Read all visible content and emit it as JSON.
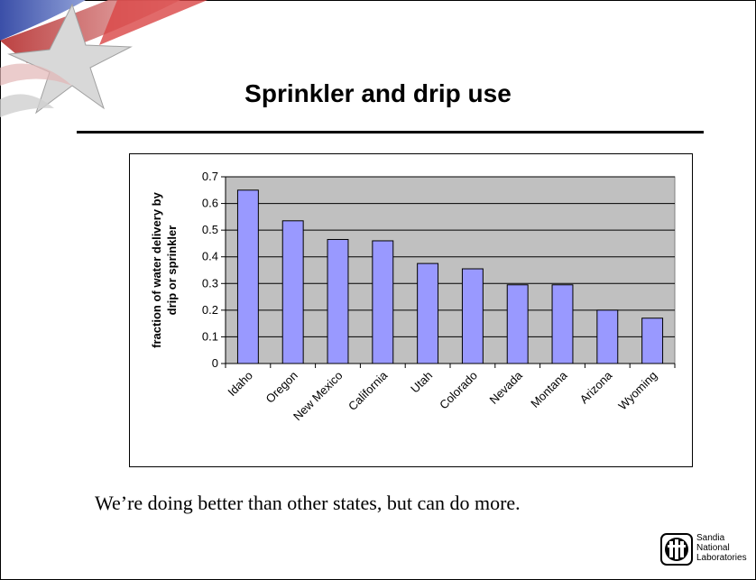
{
  "slide": {
    "title": "Sprinkler and drip use",
    "caption": "We’re doing better than other states, but can do more."
  },
  "logo": {
    "line1": "Sandia",
    "line2": "National",
    "line3": "Laboratories"
  },
  "chart_data": {
    "type": "bar",
    "categories": [
      "Idaho",
      "Oregon",
      "New Mexico",
      "California",
      "Utah",
      "Colorado",
      "Nevada",
      "Montana",
      "Arizona",
      "Wyoming"
    ],
    "series": [
      {
        "values": [
          0.65,
          0.535,
          0.465,
          0.46,
          0.375,
          0.355,
          0.295,
          0.295,
          0.2,
          0.17
        ]
      }
    ],
    "title": "",
    "xlabel": "",
    "ylabel": "fraction of water delivery by drip or sprinkler",
    "ylabel_lines": [
      "fraction of water delivery by",
      "drip or sprinkler"
    ],
    "ylim": [
      0,
      0.7
    ],
    "yticks": [
      "0",
      "0.1",
      "0.2",
      "0.3",
      "0.4",
      "0.5",
      "0.6",
      "0.7"
    ],
    "grid": true,
    "bar_color": "#9999ff",
    "plot_background": "#c0c0c0"
  }
}
